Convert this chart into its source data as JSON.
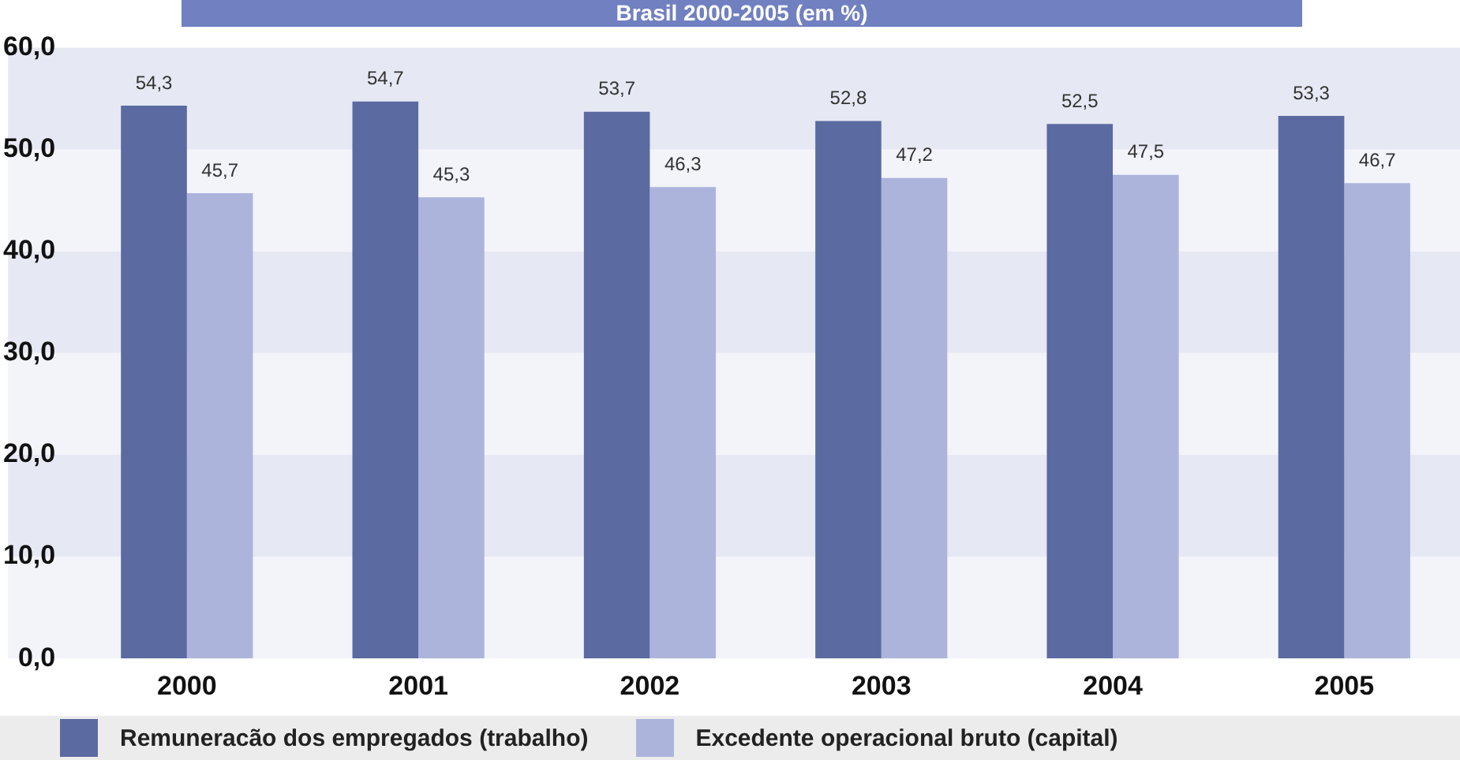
{
  "chart_data": {
    "type": "bar",
    "title": "Brasil 2000-2005 (em %)",
    "categories": [
      "2000",
      "2001",
      "2002",
      "2003",
      "2004",
      "2005"
    ],
    "series": [
      {
        "name": "Remuneracão dos empregados (trabalho)",
        "color": "#5b6aa1",
        "values": [
          54.3,
          54.7,
          53.7,
          52.8,
          52.5,
          53.3
        ],
        "value_labels": [
          "54,3",
          "54,7",
          "53,7",
          "52,8",
          "52,5",
          "53,3"
        ]
      },
      {
        "name": "Excedente operacional bruto (capital)",
        "color": "#adb4dc",
        "values": [
          45.7,
          45.3,
          46.3,
          47.2,
          47.5,
          46.7
        ],
        "value_labels": [
          "45,7",
          "45,3",
          "46,3",
          "47,2",
          "47,5",
          "46,7"
        ]
      }
    ],
    "ylim": [
      0,
      60
    ],
    "yticks": [
      {
        "value": 0,
        "label": "0,0"
      },
      {
        "value": 10,
        "label": "10,0"
      },
      {
        "value": 20,
        "label": "20,0"
      },
      {
        "value": 30,
        "label": "30,0"
      },
      {
        "value": 40,
        "label": "40,0"
      },
      {
        "value": 50,
        "label": "50,0"
      },
      {
        "value": 60,
        "label": "60,0"
      }
    ],
    "legend": "bottom left"
  }
}
